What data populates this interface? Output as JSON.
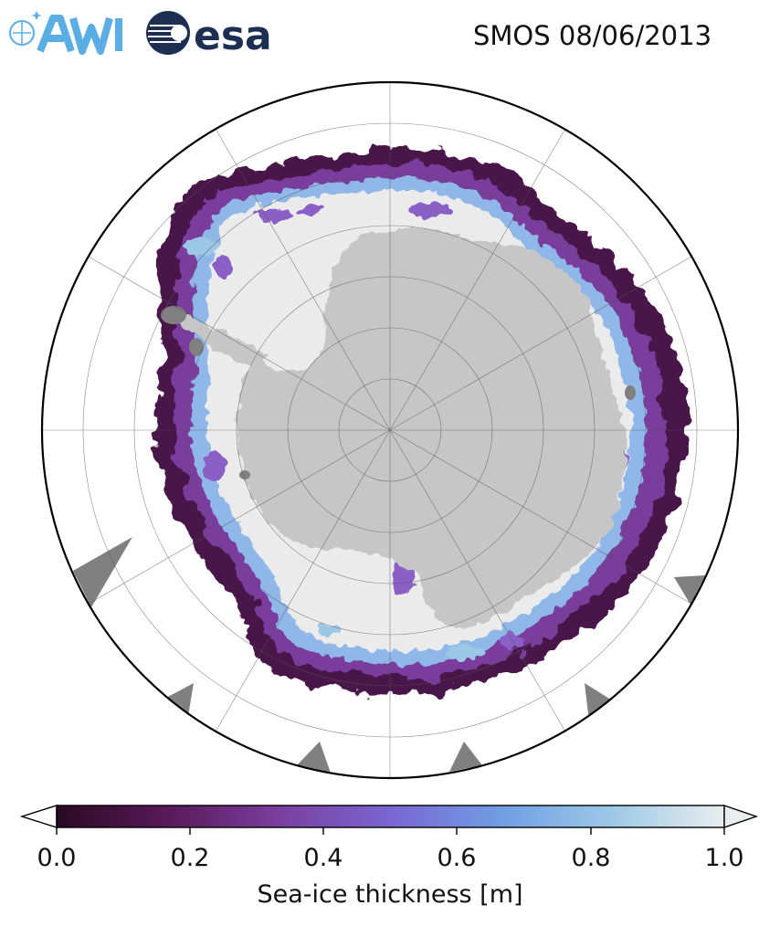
{
  "header": {
    "title": "SMOS 08/06/2013",
    "logos": [
      {
        "name": "awi-logo",
        "text": "AWI",
        "color": "#5aaee3"
      },
      {
        "name": "esa-logo",
        "text": "esa",
        "color": "#1c2e52"
      }
    ]
  },
  "map": {
    "projection": "south-polar-stereographic",
    "land_color": "#c6c6c6",
    "ocean_color": "#ffffff",
    "missing_color": "#808080",
    "gridlines": true
  },
  "colorbar": {
    "label": "Sea-ice thickness [m]",
    "min": 0.0,
    "max": 1.0,
    "extend": "both",
    "ticks": [
      "0.0",
      "0.2",
      "0.4",
      "0.6",
      "0.8",
      "1.0"
    ],
    "colors": [
      "#2a0a24",
      "#5a1a5a",
      "#7a3e9e",
      "#7a66d2",
      "#6f9fe4",
      "#9cc8e6",
      "#e8eeee"
    ]
  }
}
